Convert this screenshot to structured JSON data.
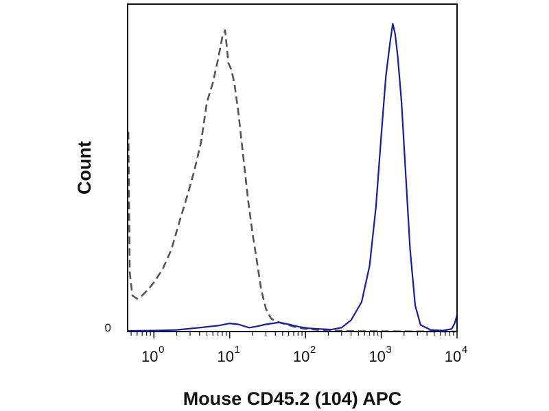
{
  "chart_data": {
    "type": "line",
    "xlabel": "Mouse CD45.2 (104) APC",
    "ylabel": "Count",
    "x_scale": "log",
    "xlim": [
      0.45,
      10000
    ],
    "ylim": [
      0,
      100
    ],
    "x_ticks": [
      {
        "base": "10",
        "exp": "0",
        "value": 1
      },
      {
        "base": "10",
        "exp": "1",
        "value": 10
      },
      {
        "base": "10",
        "exp": "2",
        "value": 100
      },
      {
        "base": "10",
        "exp": "3",
        "value": 1000
      },
      {
        "base": "10",
        "exp": "4",
        "value": 10000
      }
    ],
    "y_ticks": [
      {
        "label": "0",
        "value": 0
      }
    ],
    "grid": false,
    "legend": "none",
    "series": [
      {
        "style": "dashed",
        "color": "#555555",
        "points": [
          [
            0.46,
            61
          ],
          [
            0.48,
            18
          ],
          [
            0.52,
            11
          ],
          [
            0.6,
            10
          ],
          [
            0.7,
            11
          ],
          [
            0.85,
            13
          ],
          [
            1.0,
            15
          ],
          [
            1.3,
            19
          ],
          [
            1.7,
            25
          ],
          [
            2.2,
            34
          ],
          [
            2.8,
            42
          ],
          [
            3.4,
            49
          ],
          [
            4.2,
            58
          ],
          [
            5.0,
            70
          ],
          [
            6.0,
            76
          ],
          [
            7.0,
            83
          ],
          [
            8.0,
            90
          ],
          [
            8.7,
            92
          ],
          [
            9.6,
            82
          ],
          [
            10.5,
            80
          ],
          [
            11.5,
            76
          ],
          [
            13,
            67
          ],
          [
            15,
            54
          ],
          [
            17.5,
            40
          ],
          [
            20,
            30
          ],
          [
            23,
            21
          ],
          [
            26,
            13
          ],
          [
            30,
            7
          ],
          [
            35,
            4
          ],
          [
            42,
            3
          ],
          [
            50,
            2.5
          ],
          [
            70,
            1.5
          ],
          [
            100,
            0.8
          ],
          [
            200,
            0.3
          ],
          [
            500,
            0.1
          ],
          [
            10000,
            0
          ]
        ]
      },
      {
        "style": "solid",
        "color": "#1a1aa8",
        "points": [
          [
            0.45,
            0.2
          ],
          [
            1,
            0.3
          ],
          [
            2,
            0.5
          ],
          [
            4,
            1.2
          ],
          [
            7,
            1.8
          ],
          [
            10,
            2.5
          ],
          [
            13,
            2.2
          ],
          [
            18,
            1.2
          ],
          [
            22,
            1.5
          ],
          [
            30,
            2.2
          ],
          [
            45,
            2.8
          ],
          [
            60,
            2.2
          ],
          [
            80,
            1.5
          ],
          [
            110,
            1.0
          ],
          [
            150,
            0.8
          ],
          [
            220,
            0.6
          ],
          [
            300,
            1.2
          ],
          [
            400,
            3.5
          ],
          [
            550,
            9
          ],
          [
            700,
            20
          ],
          [
            850,
            38
          ],
          [
            1000,
            60
          ],
          [
            1150,
            78
          ],
          [
            1300,
            88
          ],
          [
            1420,
            94
          ],
          [
            1520,
            91
          ],
          [
            1650,
            84
          ],
          [
            1850,
            70
          ],
          [
            2100,
            48
          ],
          [
            2400,
            25
          ],
          [
            2800,
            8
          ],
          [
            3300,
            2
          ],
          [
            4500,
            0.5
          ],
          [
            6500,
            0.3
          ],
          [
            8500,
            0.8
          ],
          [
            9300,
            2.5
          ],
          [
            10000,
            5
          ]
        ]
      }
    ]
  }
}
